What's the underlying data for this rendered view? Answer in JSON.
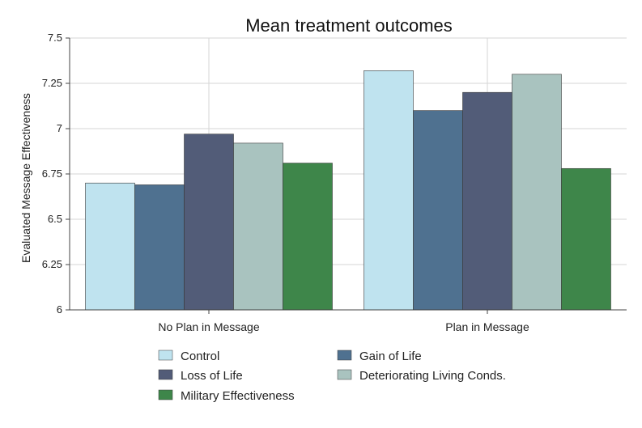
{
  "chart_data": {
    "type": "bar",
    "title": "Mean treatment outcomes",
    "ylabel": "Evaluated Message Effectiveness",
    "xlabel": "",
    "ylim": [
      6,
      7.5
    ],
    "yticks": [
      "6",
      "6.25",
      "6.5",
      "6.75",
      "7",
      "7.25",
      "7.5"
    ],
    "grid": true,
    "legend_position": "bottom",
    "categories": [
      "No Plan in Message",
      "Plan in Message"
    ],
    "series": [
      {
        "name": "Control",
        "color": "#bfe3ef",
        "values": [
          6.7,
          7.32
        ]
      },
      {
        "name": "Gain of Life",
        "color": "#4f7190",
        "values": [
          6.69,
          7.1
        ]
      },
      {
        "name": "Loss of Life",
        "color": "#525c78",
        "values": [
          6.97,
          7.2
        ]
      },
      {
        "name": "Deteriorating Living Conds.",
        "color": "#a9c3bf",
        "values": [
          6.92,
          7.3
        ]
      },
      {
        "name": "Military Effectiveness",
        "color": "#3e864a",
        "values": [
          6.81,
          6.78
        ]
      }
    ]
  }
}
